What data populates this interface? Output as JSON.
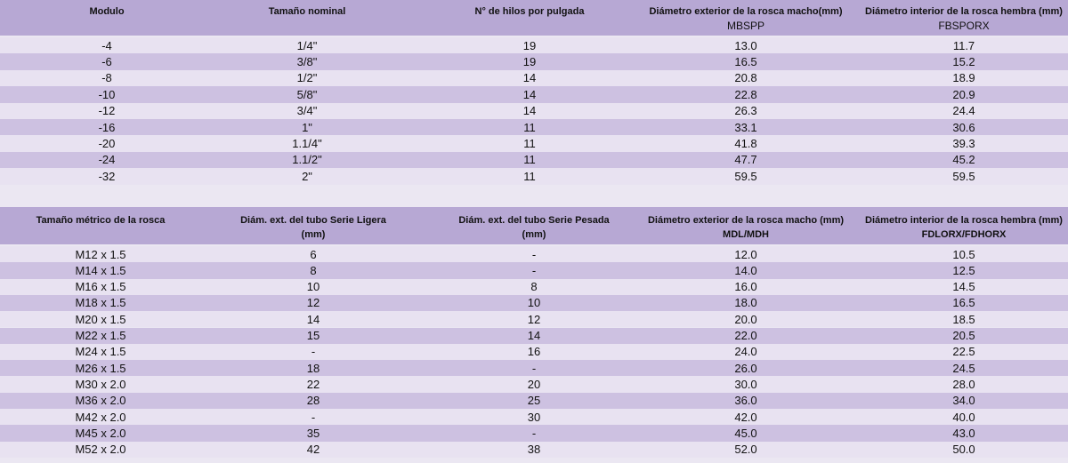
{
  "table1": {
    "header": [
      [
        "Modulo"
      ],
      [
        "Tamaño nominal"
      ],
      [
        "N° de hilos por pulgada"
      ],
      [
        "Diámetro exterior de la rosca macho(mm)",
        "MBSPP"
      ],
      [
        "Diámetro interior de la rosca hembra (mm)",
        "FBSPORX"
      ]
    ],
    "rows": [
      [
        "-4",
        "1/4\"",
        "19",
        "13.0",
        "11.7"
      ],
      [
        "-6",
        "3/8\"",
        "19",
        "16.5",
        "15.2"
      ],
      [
        "-8",
        "1/2\"",
        "14",
        "20.8",
        "18.9"
      ],
      [
        "-10",
        "5/8\"",
        "14",
        "22.8",
        "20.9"
      ],
      [
        "-12",
        "3/4\"",
        "14",
        "26.3",
        "24.4"
      ],
      [
        "-16",
        "1\"",
        "11",
        "33.1",
        "30.6"
      ],
      [
        "-20",
        "1.1/4\"",
        "11",
        "41.8",
        "39.3"
      ],
      [
        "-24",
        "1.1/2\"",
        "11",
        "47.7",
        "45.2"
      ],
      [
        "-32",
        "2\"",
        "11",
        "59.5",
        "59.5"
      ]
    ]
  },
  "table2": {
    "header": [
      [
        "Tamaño métrico de la rosca"
      ],
      [
        "Diám. ext. del tubo Serie Ligera",
        "(mm)"
      ],
      [
        "Diám. ext. del tubo Serie Pesada",
        "(mm)"
      ],
      [
        "Diámetro exterior de la rosca macho (mm)",
        "MDL/MDH"
      ],
      [
        "Diámetro interior de la rosca hembra (mm)",
        "FDLORX/FDHORX"
      ]
    ],
    "rows": [
      [
        "M12 x 1.5",
        "6",
        "-",
        "12.0",
        "10.5"
      ],
      [
        "M14 x 1.5",
        "8",
        "-",
        "14.0",
        "12.5"
      ],
      [
        "M16 x 1.5",
        "10",
        "8",
        "16.0",
        "14.5"
      ],
      [
        "M18 x 1.5",
        "12",
        "10",
        "18.0",
        "16.5"
      ],
      [
        "M20 x 1.5",
        "14",
        "12",
        "20.0",
        "18.5"
      ],
      [
        "M22 x 1.5",
        "15",
        "14",
        "22.0",
        "20.5"
      ],
      [
        "M24 x 1.5",
        "-",
        "16",
        "24.0",
        "22.5"
      ],
      [
        "M26 x 1.5",
        "18",
        "-",
        "26.0",
        "24.5"
      ],
      [
        "M30 x 2.0",
        "22",
        "20",
        "30.0",
        "28.0"
      ],
      [
        "M36 x 2.0",
        "28",
        "25",
        "36.0",
        "34.0"
      ],
      [
        "M42 x 2.0",
        "-",
        "30",
        "42.0",
        "40.0"
      ],
      [
        "M45 x 2.0",
        "35",
        "-",
        "45.0",
        "43.0"
      ],
      [
        "M52 x 2.0",
        "42",
        "38",
        "52.0",
        "50.0"
      ]
    ]
  }
}
